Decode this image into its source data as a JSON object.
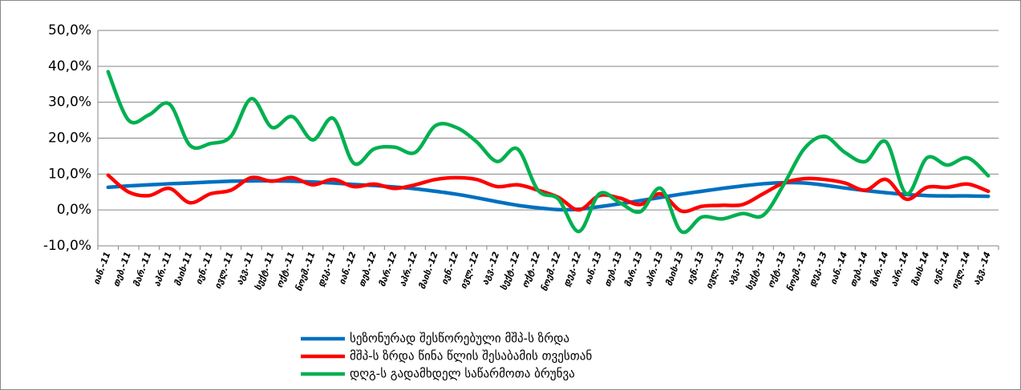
{
  "chart_data": {
    "type": "line",
    "categories": [
      "იან.-11",
      "თებ.-11",
      "მარ.-11",
      "აპრ.-11",
      "მაის-11",
      "ივნ.-11",
      "ივლ.-11",
      "აგვ.-11",
      "სექტ.-11",
      "ოქტ.-11",
      "ნოემ.-11",
      "დეკ.-11",
      "იან.-12",
      "თებ.-12",
      "მარ.-12",
      "აპრ.-12",
      "მაის.-12",
      "ივნ.-12",
      "ივლ.-12",
      "აგვ.-12",
      "სექტ.-12",
      "ოქტ.-12",
      "ნოემ.-12",
      "დეკ.-12",
      "იან.-13",
      "თებ.-13",
      "მარ.-13",
      "აპრ.-13",
      "მაის-13",
      "ივნ.-13",
      "ივლ.-13",
      "აგვ.-13",
      "სექტ.-13",
      "ოქტ.-13",
      "ნოემ.-13",
      "დეკ.-13",
      "იან.-14",
      "თებ.-14",
      "მარ.-14",
      "აპრ.-14",
      "მაის-14",
      "ივნ.-14",
      "ივლ.-14",
      "აგვ.-14"
    ],
    "series": [
      {
        "name": "სეზონურად შესწორებული მშპ-ს ზრდა",
        "color": "#0070c0",
        "values": [
          6.3,
          6.7,
          7.0,
          7.3,
          7.5,
          7.8,
          8.0,
          8.1,
          8.1,
          8.0,
          7.8,
          7.5,
          7.1,
          6.8,
          6.4,
          5.9,
          5.2,
          4.4,
          3.4,
          2.3,
          1.3,
          0.6,
          0.1,
          0.2,
          0.9,
          1.7,
          2.6,
          3.5,
          4.4,
          5.2,
          6.0,
          6.7,
          7.3,
          7.6,
          7.5,
          6.9,
          6.1,
          5.4,
          4.8,
          4.3,
          4.0,
          3.9,
          3.9,
          3.8
        ]
      },
      {
        "name": "მშპ-ს ზრდა წინა წლის შესაბამის თვესთან",
        "color": "#ff0000",
        "values": [
          9.7,
          5.0,
          4.0,
          6.0,
          2.0,
          4.5,
          5.5,
          9.0,
          8.0,
          9.0,
          7.0,
          8.5,
          6.5,
          7.2,
          6.0,
          7.0,
          8.5,
          9.0,
          8.5,
          6.5,
          7.0,
          5.5,
          3.5,
          0.0,
          4.0,
          3.3,
          1.5,
          4.5,
          -0.3,
          1.0,
          1.3,
          1.5,
          4.5,
          7.5,
          8.7,
          8.5,
          7.5,
          5.5,
          8.5,
          3.0,
          6.3,
          6.3,
          7.2,
          5.2
        ]
      },
      {
        "name": "დღგ-ს გადამხდელ საწარმოთა ბრუნვა",
        "color": "#00b050",
        "values": [
          38.5,
          25.0,
          26.5,
          29.5,
          18.0,
          18.5,
          20.5,
          31.0,
          23.0,
          26.0,
          19.5,
          25.5,
          13.0,
          17.0,
          17.5,
          16.0,
          23.5,
          23.0,
          19.0,
          13.5,
          17.0,
          5.5,
          3.0,
          -6.0,
          4.5,
          2.0,
          -0.5,
          6.0,
          -6.0,
          -2.0,
          -2.5,
          -1.0,
          -1.5,
          7.0,
          17.0,
          20.5,
          16.0,
          13.5,
          19.0,
          4.5,
          14.5,
          12.5,
          14.5,
          9.5
        ]
      }
    ],
    "ylim": [
      -10,
      50
    ],
    "yticks": [
      {
        "value": -10,
        "label": "-10,0%"
      },
      {
        "value": 0,
        "label": "0,0%"
      },
      {
        "value": 10,
        "label": "10,0%"
      },
      {
        "value": 20,
        "label": "20,0%"
      },
      {
        "value": 30,
        "label": "30,0%"
      },
      {
        "value": 40,
        "label": "40,0%"
      },
      {
        "value": 50,
        "label": "50,0%"
      }
    ],
    "grid": true,
    "legend": "bottom"
  }
}
